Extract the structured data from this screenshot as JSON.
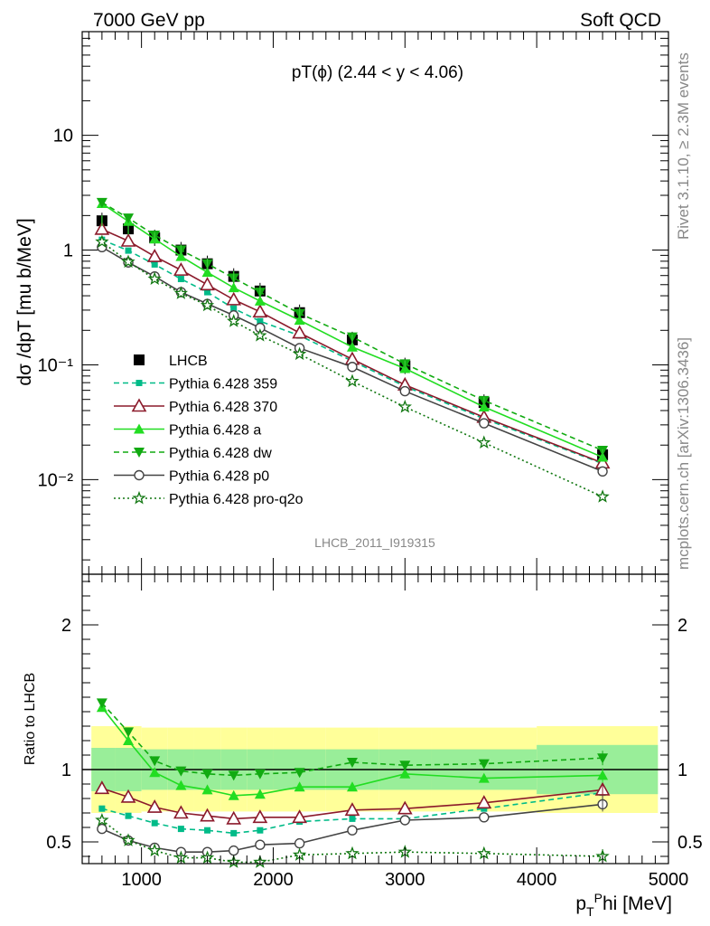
{
  "header": {
    "left": "7000 GeV pp",
    "right": "Soft QCD"
  },
  "side": {
    "rivet": "Rivet 3.1.10, ≥ 2.3M events",
    "site": "mcplots.cern.ch [arXiv:1306.3436]"
  },
  "colors": {
    "band_inner": "#99ee99",
    "band_outer": "#ffff99"
  },
  "chart_data": [
    {
      "type": "line",
      "title": "pT(ϕ) (2.44 < y < 4.06)",
      "ylabel": "dσ /dpT [mu b/MeV]",
      "xlabel": "",
      "log_y": true,
      "xlim": [
        550,
        5000
      ],
      "ylim": [
        0.0015,
        80
      ],
      "yticks": [
        "10⁻²",
        "10⁻¹",
        "1",
        "10"
      ],
      "watermark": "LHCB_2011_I919315",
      "x": [
        700,
        900,
        1100,
        1300,
        1500,
        1700,
        1900,
        2200,
        2600,
        3000,
        3600,
        4500
      ],
      "series": [
        {
          "name": "LHCB",
          "color": "#000000",
          "marker": "square-filled",
          "line": "none",
          "values": [
            1.8,
            1.53,
            1.28,
            1.0,
            0.76,
            0.59,
            0.44,
            0.285,
            0.165,
            0.098,
            0.047,
            0.0165
          ]
        },
        {
          "name": "Pythia 6.428 359",
          "color": "#00bb88",
          "marker": "square-small",
          "line": "dashed",
          "values": [
            1.23,
            0.99,
            0.75,
            0.56,
            0.43,
            0.31,
            0.24,
            0.18,
            0.108,
            0.065,
            0.034,
            0.0138
          ]
        },
        {
          "name": "Pythia 6.428 370",
          "color": "#8b1a2b",
          "marker": "triangle-open",
          "line": "solid",
          "values": [
            1.52,
            1.2,
            0.88,
            0.67,
            0.5,
            0.37,
            0.29,
            0.19,
            0.112,
            0.067,
            0.035,
            0.014
          ]
        },
        {
          "name": "Pythia 6.428 a",
          "color": "#22dd22",
          "marker": "triangle-filled",
          "line": "solid",
          "values": [
            2.55,
            1.78,
            1.25,
            0.88,
            0.64,
            0.47,
            0.36,
            0.245,
            0.143,
            0.093,
            0.043,
            0.0157
          ]
        },
        {
          "name": "Pythia 6.428 dw",
          "color": "#11aa11",
          "marker": "triangle-down-filled",
          "line": "dashed",
          "values": [
            2.6,
            1.9,
            1.35,
            1.0,
            0.76,
            0.57,
            0.43,
            0.28,
            0.175,
            0.102,
            0.049,
            0.018
          ]
        },
        {
          "name": "Pythia 6.428 p0",
          "color": "#444444",
          "marker": "circle-open",
          "line": "solid",
          "values": [
            1.06,
            0.78,
            0.59,
            0.43,
            0.34,
            0.27,
            0.21,
            0.14,
            0.096,
            0.059,
            0.031,
            0.0118
          ]
        },
        {
          "name": "Pythia 6.428 pro-q2o",
          "color": "#117711",
          "marker": "star-open",
          "line": "dotted",
          "values": [
            1.18,
            0.79,
            0.56,
            0.42,
            0.33,
            0.24,
            0.18,
            0.124,
            0.072,
            0.043,
            0.021,
            0.0071
          ]
        }
      ]
    },
    {
      "type": "line",
      "title": "",
      "ylabel": "Ratio to LHCB",
      "xlabel": "p_T^Phi [MeV]",
      "xlim": [
        550,
        5000
      ],
      "ylim": [
        0.35,
        2.35
      ],
      "xticks": [
        1000,
        2000,
        3000,
        4000,
        5000
      ],
      "yticks": [
        0.5,
        1,
        2
      ],
      "x": [
        700,
        900,
        1100,
        1300,
        1500,
        1700,
        1900,
        2200,
        2600,
        3000,
        3600,
        4500
      ],
      "bands": [
        {
          "x_edges": [
            600,
            800,
            1000,
            1200,
            1400,
            1600,
            1800,
            2000,
            2400,
            2800,
            3200,
            4000,
            5000
          ],
          "inner": [
            0.15,
            0.15,
            0.14,
            0.14,
            0.14,
            0.14,
            0.14,
            0.14,
            0.14,
            0.14,
            0.14,
            0.17
          ],
          "outer": [
            0.3,
            0.3,
            0.29,
            0.29,
            0.29,
            0.29,
            0.29,
            0.29,
            0.29,
            0.29,
            0.29,
            0.3
          ]
        }
      ],
      "series": [
        {
          "name": "Pythia 6.428 359",
          "values": [
            0.73,
            0.68,
            0.63,
            0.59,
            0.58,
            0.56,
            0.58,
            0.64,
            0.66,
            0.66,
            0.73,
            0.84
          ]
        },
        {
          "name": "Pythia 6.428 370",
          "values": [
            0.87,
            0.81,
            0.74,
            0.7,
            0.68,
            0.66,
            0.67,
            0.67,
            0.72,
            0.73,
            0.77,
            0.86
          ]
        },
        {
          "name": "Pythia 6.428 a",
          "values": [
            1.43,
            1.2,
            0.98,
            0.89,
            0.86,
            0.82,
            0.83,
            0.88,
            0.88,
            0.97,
            0.94,
            0.96
          ]
        },
        {
          "name": "Pythia 6.428 dw",
          "values": [
            1.46,
            1.26,
            1.06,
            0.99,
            0.97,
            0.96,
            0.97,
            0.98,
            1.05,
            1.03,
            1.04,
            1.08
          ]
        },
        {
          "name": "Pythia 6.428 p0",
          "values": [
            0.59,
            0.51,
            0.46,
            0.43,
            0.43,
            0.44,
            0.48,
            0.49,
            0.58,
            0.65,
            0.67,
            0.76
          ]
        },
        {
          "name": "Pythia 6.428 pro-q2o",
          "values": [
            0.65,
            0.51,
            0.44,
            0.39,
            0.39,
            0.36,
            0.36,
            0.41,
            0.42,
            0.43,
            0.42,
            0.4
          ]
        }
      ]
    }
  ]
}
